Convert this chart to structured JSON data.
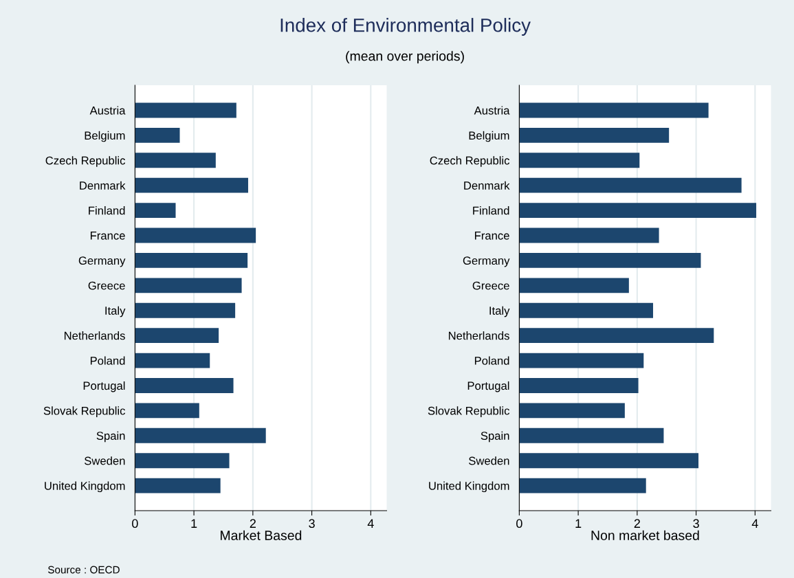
{
  "chart_data": [
    {
      "type": "bar",
      "orientation": "horizontal",
      "title": "Index of Environmental Policy",
      "subtitle": "(mean over periods)",
      "xlabel": "Market Based",
      "annotations": [
        "Source : OECD"
      ],
      "categories": [
        "Austria",
        "Belgium",
        "Czech Republic",
        "Denmark",
        "Finland",
        "France",
        "Germany",
        "Greece",
        "Italy",
        "Netherlands",
        "Poland",
        "Portugal",
        "Slovak Republic",
        "Spain",
        "Sweden",
        "United Kingdom"
      ],
      "series": [
        {
          "color": "#1c466e",
          "values": [
            1.72,
            0.76,
            1.37,
            1.92,
            0.69,
            2.05,
            1.91,
            1.81,
            1.7,
            1.42,
            1.27,
            1.67,
            1.09,
            2.22,
            1.6,
            1.45
          ]
        }
      ],
      "xlim": [
        0,
        4.27
      ],
      "xticks": [
        0,
        1,
        2,
        3,
        4
      ],
      "grid": "x"
    },
    {
      "type": "bar",
      "orientation": "horizontal",
      "xlabel": "Non market based",
      "categories": [
        "Austria",
        "Belgium",
        "Czech Republic",
        "Denmark",
        "Finland",
        "France",
        "Germany",
        "Greece",
        "Italy",
        "Netherlands",
        "Poland",
        "Portugal",
        "Slovak Republic",
        "Spain",
        "Sweden",
        "United Kingdom"
      ],
      "series": [
        {
          "color": "#1c466e",
          "values": [
            3.21,
            2.54,
            2.04,
            3.77,
            4.02,
            2.37,
            3.08,
            1.86,
            2.27,
            3.3,
            2.11,
            2.02,
            1.79,
            2.45,
            3.04,
            2.15
          ]
        }
      ],
      "xlim": [
        0,
        4.27
      ],
      "xticks": [
        0,
        1,
        2,
        3,
        4
      ],
      "grid": "x"
    }
  ]
}
